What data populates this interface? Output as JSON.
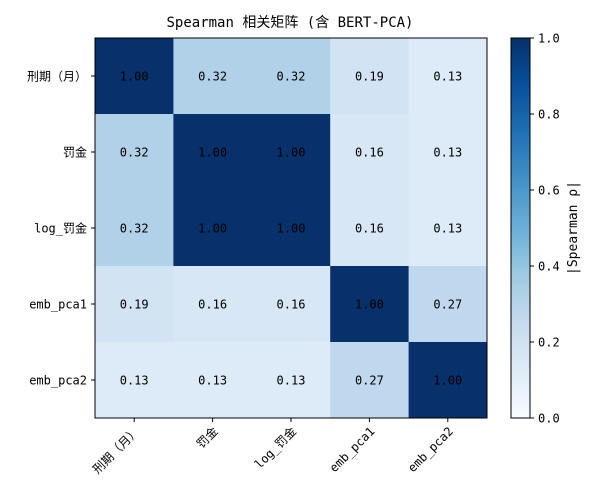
{
  "chart_data": {
    "type": "heatmap",
    "title": "Spearman 相关矩阵 (含 BERT-PCA)",
    "row_labels": [
      "刑期（月）",
      "罚金",
      "log_罚金",
      "emb_pca1",
      "emb_pca2"
    ],
    "col_labels": [
      "刑期（月）",
      "罚金",
      "log_罚金",
      "emb_pca1",
      "emb_pca2"
    ],
    "values": [
      [
        1.0,
        0.32,
        0.32,
        0.19,
        0.13
      ],
      [
        0.32,
        1.0,
        1.0,
        0.16,
        0.13
      ],
      [
        0.32,
        1.0,
        1.0,
        0.16,
        0.13
      ],
      [
        0.19,
        0.16,
        0.16,
        1.0,
        0.27
      ],
      [
        0.13,
        0.13,
        0.13,
        0.27,
        1.0
      ]
    ],
    "value_format": "0.00",
    "colormap": "Blues",
    "vmin": 0.0,
    "vmax": 1.0,
    "colorbar": {
      "label": "|Spearman ρ|",
      "ticks": [
        "0.0",
        "0.2",
        "0.4",
        "0.6",
        "0.8",
        "1.0"
      ]
    },
    "colors": {
      "low": "#f7fbff",
      "high": "#08306b",
      "text": "#000000"
    }
  }
}
